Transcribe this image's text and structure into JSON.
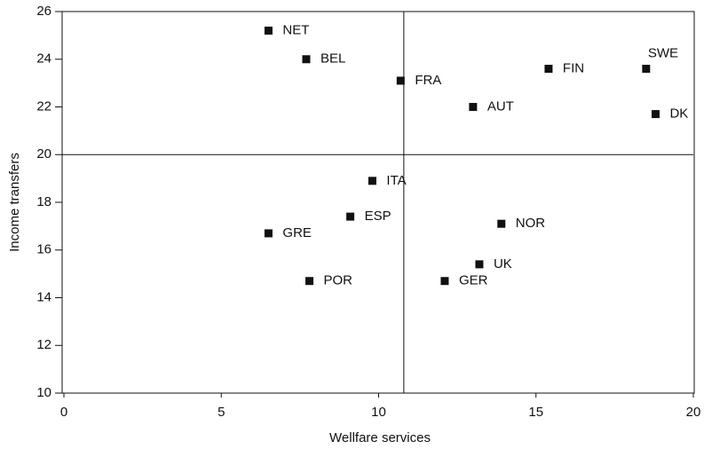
{
  "chart_data": {
    "type": "scatter",
    "xlabel": "Wellfare services",
    "ylabel": "Income transfers",
    "series": [
      {
        "color": "#111111",
        "labels": [
          "NET",
          "BEL",
          "FRA",
          "FIN",
          "SWE",
          "AUT",
          "DK",
          "ITA",
          "ESP",
          "NOR",
          "GRE",
          "UK",
          "GER",
          "POR"
        ],
        "x": [
          6.5,
          7.7,
          10.7,
          15.4,
          18.5,
          13.0,
          18.8,
          9.8,
          9.1,
          13.9,
          6.5,
          13.2,
          12.1,
          7.8
        ],
        "values": [
          25.2,
          24.0,
          23.1,
          23.6,
          23.6,
          22.0,
          21.7,
          18.9,
          17.4,
          17.1,
          16.7,
          15.4,
          14.7,
          14.7
        ]
      }
    ],
    "reference_lines": {
      "x": 10.8,
      "y": 20
    },
    "xlim": [
      0,
      20
    ],
    "xticks": [
      0,
      5,
      10,
      15,
      20
    ],
    "ylim": [
      10,
      26
    ],
    "yticks": [
      10,
      12,
      14,
      16,
      18,
      20,
      22,
      24,
      26
    ],
    "grid": false
  }
}
